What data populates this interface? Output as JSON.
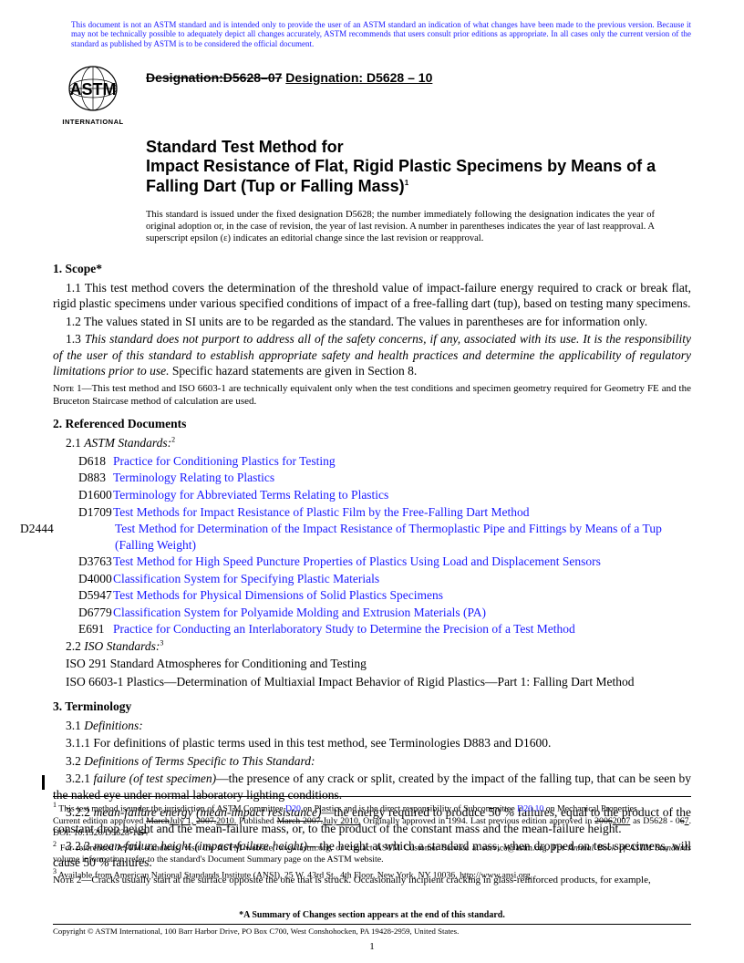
{
  "colors": {
    "link": "#1a1aff",
    "text": "#000000",
    "bg": "#ffffff"
  },
  "top_note": "This document is not an ASTM standard and is intended only to provide the user of an ASTM standard an indication of what changes have been made to the previous version. Because it may not be technically possible to adequately depict all changes accurately, ASTM recommends that users consult prior editions as appropriate. In all cases only the current version of the standard as published by ASTM is to be considered the official document.",
  "logo": {
    "top": "ASTM",
    "bottom": "INTERNATIONAL"
  },
  "designation": {
    "old": "Designation:D5628–07",
    "new": "Designation: D5628 – 10"
  },
  "title": {
    "line1": "Standard Test Method for",
    "line2": "Impact Resistance of Flat, Rigid Plastic Specimens by Means of a Falling Dart (Tup or Falling Mass)",
    "sup": "1"
  },
  "issued": "This standard is issued under the fixed designation D5628; the number immediately following the designation indicates the year of original adoption or, in the case of revision, the year of last revision. A number in parentheses indicates the year of last reapproval. A superscript epsilon (ε) indicates an editorial change since the last revision or reapproval.",
  "scope": {
    "heading": "1. Scope*",
    "p11": "1.1 This test method covers the determination of the threshold value of impact-failure energy required to crack or break flat, rigid plastic specimens under various specified conditions of impact of a free-falling dart (tup), based on testing many specimens.",
    "p12": "1.2 The values stated in SI units are to be regarded as the standard. The values in parentheses are for information only.",
    "p13a": "1.3 ",
    "p13b": "This standard does not purport to address all of the safety concerns, if any, associated with its use. It is the responsibility of the user of this standard to establish appropriate safety and health practices and determine the applicability of regulatory limitations prior to use.",
    "p13c": " Specific hazard statements are given in Section 8.",
    "note1": "Nᴏᴛᴇ 1—This test method and ISO 6603-1 are technically equivalent only when the test conditions and specimen geometry required for Geometry FE and the Bruceton Staircase method of calculation are used."
  },
  "refs": {
    "heading": "2. Referenced Documents",
    "sub21a": "2.1 ",
    "sub21b": "ASTM Standards:",
    "sup21": "2",
    "items": [
      {
        "code": "D618",
        "title": "Practice for Conditioning Plastics for Testing"
      },
      {
        "code": "D883",
        "title": "Terminology Relating to Plastics"
      },
      {
        "code": "D1600",
        "title": "Terminology for Abbreviated Terms Relating to Plastics"
      },
      {
        "code": "D1709",
        "title": "Test Methods for Impact Resistance of Plastic Film by the Free-Falling Dart Method"
      },
      {
        "code": "D2444",
        "title": "Test Method for Determination of the Impact Resistance of Thermoplastic Pipe and Fittings by Means of a Tup (Falling Weight)"
      },
      {
        "code": "D3763",
        "title": "Test Method for High Speed Puncture Properties of Plastics Using Load and Displacement Sensors"
      },
      {
        "code": "D4000",
        "title": "Classification System for Specifying Plastic Materials"
      },
      {
        "code": "D5947",
        "title": "Test Methods for Physical Dimensions of Solid Plastics Specimens"
      },
      {
        "code": "D6779",
        "title": "Classification System for Polyamide Molding and Extrusion Materials (PA)"
      },
      {
        "code": "E691",
        "title": "Practice for Conducting an Interlaboratory Study to Determine the Precision of a Test Method"
      }
    ],
    "sub22a": "2.2 ",
    "sub22b": "ISO Standards:",
    "sup22": "3",
    "iso1": "ISO 291 Standard Atmospheres for Conditioning and Testing",
    "iso2": "ISO 6603-1 Plastics—Determination of Multiaxial Impact Behavior of Rigid Plastics—Part 1: Falling Dart Method"
  },
  "term": {
    "heading": "3. Terminology",
    "p31a": "3.1 ",
    "p31b": "Definitions:",
    "p311": "3.1.1 For definitions of plastic terms used in this test method, see Terminologies D883 and D1600.",
    "p32a": "3.2 ",
    "p32b": "Definitions of Terms Specific to This Standard:",
    "p321a": "3.2.1 ",
    "p321term": "failure (of test specimen)",
    "p321b": "—the presence of any crack or split, created by the impact of the falling tup, that can be seen by the naked eye under normal laboratory lighting conditions.",
    "p322a": "3.2.2 ",
    "p322term": "mean-failure energy (mean-impact resistance)",
    "p322b": "—the energy required to produce 50 % failures, equal to the product of the constant drop height and the mean-failure mass, or, to the product of the constant mass and the mean-failure height.",
    "p323a": "3.2.3 ",
    "p323term": "mean-failure height (impact-failure height)",
    "p323b": "—the height at which a standard mass, when dropped on test specimens, will cause 50 % failures.",
    "note2": "Nᴏᴛᴇ 2—Cracks usually start at the surface opposite the one that is struck. Occasionally incipient cracking in glass-reinforced products, for example,"
  },
  "footnotes": {
    "f1a": "This test method is under the jurisdiction of ASTM Committee ",
    "f1link1": "D20",
    "f1b": " on Plastics and is the direct responsibility of Subcommittee ",
    "f1link2": "D20.10",
    "f1c": " on Mechanical Properties.",
    "f1d_pre": "Current edition approved ",
    "f1d_strike1": "March",
    "f1d_mid": "July 1, ",
    "f1d_strike2": "2007.",
    "f1d_u1": "2010.",
    "f1d_pub": " Published ",
    "f1d_strike3": "March 2007.",
    "f1d_u2": "July 2010.",
    "f1d_orig": " Originally approved in 1994. Last previous edition approved in ",
    "f1d_strike4": "2006",
    "f1d_u3": "2007",
    "f1d_as": " as D5628 - 0",
    "f1d_strike5": "6",
    "f1d_u4": "7",
    "f1d_doi": ". DOI: 10.1520/D5628-10",
    "f1d_strike6": "7.",
    "f2": "For referenced ASTM standards, visit the ASTM website, www.astm.org, or contact ASTM Customer Service at service@astm.org. For ",
    "f2ital": "Annual Book of ASTM Standards",
    "f2b": " volume information, refer to the standard's Document Summary page on the ASTM website.",
    "f3": "Available from American National Standards Institute (ANSI), 25 W. 43rd St., 4th Floor, New York, NY 10036, http://www.ansi.org."
  },
  "footer": {
    "summary": "*A Summary of Changes section appears at the end of this standard.",
    "copyright": "Copyright © ASTM International, 100 Barr Harbor Drive, PO Box C700, West Conshohocken, PA 19428-2959, United States."
  },
  "page_number": "1",
  "changebar_tops": [
    850
  ]
}
